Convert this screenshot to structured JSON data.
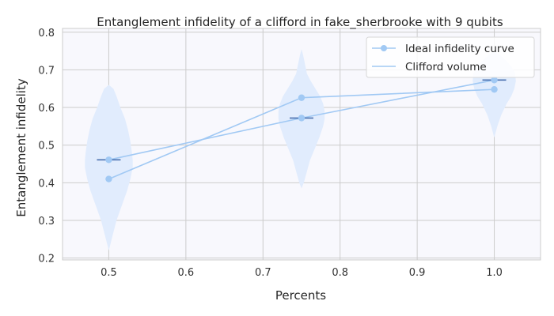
{
  "chart_data": {
    "type": "line",
    "title": "Entanglement infidelity of a clifford in fake_sherbrooke with 9 qubits",
    "xlabel": "Percents",
    "ylabel": "Entanglement infidelity",
    "xlim": [
      0.44,
      1.06
    ],
    "ylim": [
      0.195,
      0.81
    ],
    "xticks": [
      0.5,
      0.6,
      0.7,
      0.8,
      0.9,
      1.0
    ],
    "xtick_labels": [
      "0.5",
      "0.6",
      "0.7",
      "0.8",
      "0.9",
      "1.0"
    ],
    "yticks": [
      0.2,
      0.3,
      0.4,
      0.5,
      0.6,
      0.7,
      0.8
    ],
    "ytick_labels": [
      "0.2",
      "0.3",
      "0.4",
      "0.5",
      "0.6",
      "0.7",
      "0.8"
    ],
    "grid": true,
    "legend_position": "top-right",
    "colors": {
      "line": "#a1c9f4",
      "violin_fill": "#e1ecfd",
      "median": "#4c72b0",
      "grid": "#cccccc",
      "plot_bg": "#f8f8fd"
    },
    "series": [
      {
        "name": "Ideal infidelity curve",
        "x": [
          0.5,
          0.75,
          1.0
        ],
        "y": [
          0.41,
          0.626,
          0.648
        ],
        "marker": "circle"
      },
      {
        "name": "Clifford volume",
        "x": [
          0.5,
          0.75,
          1.0
        ],
        "y": [
          0.461,
          0.572,
          0.673
        ],
        "marker": "circle"
      }
    ],
    "distributions": [
      {
        "x": 0.5,
        "median": 0.461,
        "profile": [
          [
            0.22,
            0.0
          ],
          [
            0.26,
            0.005
          ],
          [
            0.3,
            0.01
          ],
          [
            0.34,
            0.017
          ],
          [
            0.38,
            0.024
          ],
          [
            0.41,
            0.028
          ],
          [
            0.44,
            0.031
          ],
          [
            0.46,
            0.031
          ],
          [
            0.48,
            0.03
          ],
          [
            0.51,
            0.028
          ],
          [
            0.54,
            0.025
          ],
          [
            0.57,
            0.021
          ],
          [
            0.6,
            0.015
          ],
          [
            0.63,
            0.01
          ],
          [
            0.65,
            0.006
          ],
          [
            0.66,
            0.0
          ]
        ]
      },
      {
        "x": 0.75,
        "median": 0.572,
        "profile": [
          [
            0.385,
            0.0
          ],
          [
            0.4,
            0.003
          ],
          [
            0.43,
            0.007
          ],
          [
            0.46,
            0.011
          ],
          [
            0.49,
            0.017
          ],
          [
            0.52,
            0.023
          ],
          [
            0.55,
            0.028
          ],
          [
            0.57,
            0.03
          ],
          [
            0.59,
            0.03
          ],
          [
            0.61,
            0.028
          ],
          [
            0.63,
            0.024
          ],
          [
            0.65,
            0.018
          ],
          [
            0.67,
            0.012
          ],
          [
            0.69,
            0.007
          ],
          [
            0.72,
            0.004
          ],
          [
            0.74,
            0.002
          ],
          [
            0.755,
            0.0
          ]
        ]
      },
      {
        "x": 1.0,
        "median": 0.673,
        "profile": [
          [
            0.52,
            0.0
          ],
          [
            0.55,
            0.004
          ],
          [
            0.58,
            0.009
          ],
          [
            0.61,
            0.016
          ],
          [
            0.63,
            0.022
          ],
          [
            0.65,
            0.026
          ],
          [
            0.67,
            0.028
          ],
          [
            0.69,
            0.027
          ],
          [
            0.71,
            0.022
          ],
          [
            0.725,
            0.015
          ],
          [
            0.74,
            0.007
          ],
          [
            0.75,
            0.0
          ]
        ]
      }
    ]
  }
}
